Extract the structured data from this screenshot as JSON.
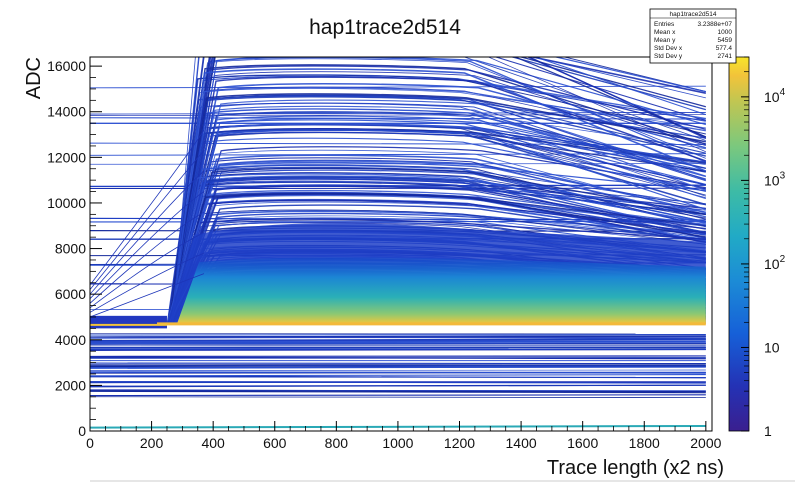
{
  "chart_data": {
    "type": "heatmap",
    "title": "hap1trace2d514",
    "xlabel": "Trace length (x2 ns)",
    "ylabel": "ADC",
    "xlim": [
      0,
      2020
    ],
    "ylim": [
      0,
      16400
    ],
    "x_ticks": [
      0,
      200,
      400,
      600,
      800,
      1000,
      1200,
      1400,
      1600,
      1800,
      2000
    ],
    "y_ticks": [
      0,
      2000,
      4000,
      6000,
      8000,
      10000,
      12000,
      14000,
      16000
    ],
    "z_scale": "log",
    "z_range": [
      1,
      30000
    ],
    "z_ticks": [
      {
        "value": 1,
        "label": "1"
      },
      {
        "value": 10,
        "label": "10"
      },
      {
        "value": 100,
        "label": "10",
        "exp": "2"
      },
      {
        "value": 1000,
        "label": "10",
        "exp": "3"
      },
      {
        "value": 10000,
        "label": "10",
        "exp": "4"
      }
    ],
    "rise_start_x": 250,
    "rise_end_x": 370,
    "baseline_adc": 4700,
    "stats": {
      "name": "hap1trace2d514",
      "rows": [
        {
          "label": "Entries",
          "value": "3.2388e+07"
        },
        {
          "label": "Mean x",
          "value": "1000"
        },
        {
          "label": "Mean y",
          "value": "5459"
        },
        {
          "label": "Std Dev x",
          "value": "577.4"
        },
        {
          "label": "Std Dev y",
          "value": "2741"
        }
      ]
    },
    "palette": [
      "#3a1f8f",
      "#2432b5",
      "#1660d8",
      "#1c8bd6",
      "#21aac6",
      "#3dbba6",
      "#7ac87e",
      "#c0c652",
      "#f2c33a",
      "#f7e52a"
    ],
    "grid": false,
    "legend": "colorbar-right"
  }
}
